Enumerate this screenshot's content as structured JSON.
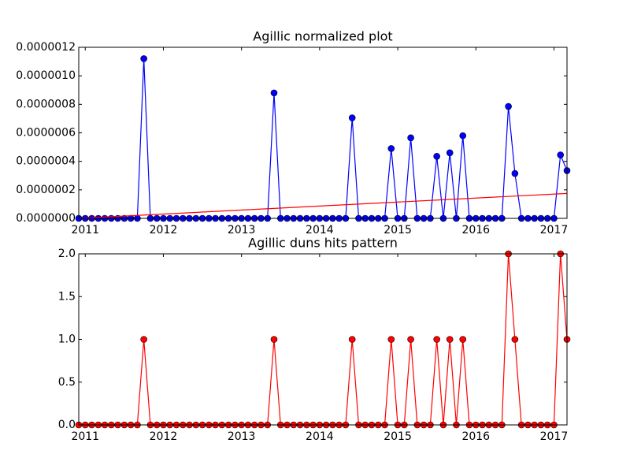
{
  "chart_data": [
    {
      "type": "line",
      "title": "Agillic normalized plot",
      "x": [
        2010.9167,
        2011,
        2011.0833,
        2011.1667,
        2011.25,
        2011.3333,
        2011.4167,
        2011.5,
        2011.5833,
        2011.6667,
        2011.75,
        2011.8333,
        2011.9167,
        2012,
        2012.0833,
        2012.1667,
        2012.25,
        2012.3333,
        2012.4167,
        2012.5,
        2012.5833,
        2012.6667,
        2012.75,
        2012.8333,
        2012.9167,
        2013,
        2013.0833,
        2013.1667,
        2013.25,
        2013.3333,
        2013.4167,
        2013.5,
        2013.5833,
        2013.6667,
        2013.75,
        2013.8333,
        2013.9167,
        2014,
        2014.0833,
        2014.1667,
        2014.25,
        2014.3333,
        2014.4167,
        2014.5,
        2014.5833,
        2014.6667,
        2014.75,
        2014.8333,
        2014.9167,
        2015,
        2015.0833,
        2015.1667,
        2015.25,
        2015.3333,
        2015.4167,
        2015.5,
        2015.5833,
        2015.6667,
        2015.75,
        2015.8333,
        2015.9167,
        2016,
        2016.0833,
        2016.1667,
        2016.25,
        2016.3333,
        2016.4167,
        2016.5,
        2016.5833,
        2016.6667,
        2016.75,
        2016.8333,
        2016.9167,
        2017,
        2017.0833,
        2017.1667
      ],
      "series": [
        {
          "color": "#0000ff",
          "marker": true,
          "values": [
            0,
            0,
            0,
            0,
            0,
            0,
            0,
            0,
            0,
            0,
            1.12e-06,
            0,
            0,
            0,
            0,
            0,
            0,
            0,
            0,
            0,
            0,
            0,
            0,
            0,
            0,
            0,
            0,
            0,
            0,
            0,
            8.8e-07,
            0,
            0,
            0,
            0,
            0,
            0,
            0,
            0,
            0,
            0,
            0,
            7.05e-07,
            0,
            0,
            0,
            0,
            0,
            4.9e-07,
            0,
            0,
            5.65e-07,
            0,
            0,
            0,
            4.35e-07,
            0,
            4.6e-07,
            0,
            5.8e-07,
            0,
            0,
            0,
            0,
            0,
            0,
            7.85e-07,
            3.15e-07,
            0,
            0,
            0,
            0,
            0,
            0,
            4.45e-07,
            3.35e-07
          ]
        },
        {
          "color": "#ff0000",
          "marker": false,
          "x": [
            2010.9167,
            2017.1667
          ],
          "values": [
            0,
            1.75e-07
          ]
        }
      ],
      "xlim": [
        2010.9167,
        2017.1667
      ],
      "xticks": [
        2011,
        2012,
        2013,
        2014,
        2015,
        2016,
        2017
      ],
      "ylim": [
        0,
        1.2e-06
      ],
      "yticks": [
        {
          "value": 0,
          "label": "0.0000000"
        },
        {
          "value": 2e-07,
          "label": "0.0000002"
        },
        {
          "value": 4e-07,
          "label": "0.0000004"
        },
        {
          "value": 6e-07,
          "label": "0.0000006"
        },
        {
          "value": 8e-07,
          "label": "0.0000008"
        },
        {
          "value": 1e-06,
          "label": "0.0000010"
        },
        {
          "value": 1.2e-06,
          "label": "0.0000012"
        }
      ]
    },
    {
      "type": "line",
      "title": "Agillic duns hits pattern",
      "x": [
        2010.9167,
        2011,
        2011.0833,
        2011.1667,
        2011.25,
        2011.3333,
        2011.4167,
        2011.5,
        2011.5833,
        2011.6667,
        2011.75,
        2011.8333,
        2011.9167,
        2012,
        2012.0833,
        2012.1667,
        2012.25,
        2012.3333,
        2012.4167,
        2012.5,
        2012.5833,
        2012.6667,
        2012.75,
        2012.8333,
        2012.9167,
        2013,
        2013.0833,
        2013.1667,
        2013.25,
        2013.3333,
        2013.4167,
        2013.5,
        2013.5833,
        2013.6667,
        2013.75,
        2013.8333,
        2013.9167,
        2014,
        2014.0833,
        2014.1667,
        2014.25,
        2014.3333,
        2014.4167,
        2014.5,
        2014.5833,
        2014.6667,
        2014.75,
        2014.8333,
        2014.9167,
        2015,
        2015.0833,
        2015.1667,
        2015.25,
        2015.3333,
        2015.4167,
        2015.5,
        2015.5833,
        2015.6667,
        2015.75,
        2015.8333,
        2015.9167,
        2016,
        2016.0833,
        2016.1667,
        2016.25,
        2016.3333,
        2016.4167,
        2016.5,
        2016.5833,
        2016.6667,
        2016.75,
        2016.8333,
        2016.9167,
        2017,
        2017.0833,
        2017.1667
      ],
      "series": [
        {
          "color": "#ff0000",
          "marker": true,
          "values": [
            0,
            0,
            0,
            0,
            0,
            0,
            0,
            0,
            0,
            0,
            1,
            0,
            0,
            0,
            0,
            0,
            0,
            0,
            0,
            0,
            0,
            0,
            0,
            0,
            0,
            0,
            0,
            0,
            0,
            0,
            1,
            0,
            0,
            0,
            0,
            0,
            0,
            0,
            0,
            0,
            0,
            0,
            1,
            0,
            0,
            0,
            0,
            0,
            1,
            0,
            0,
            1,
            0,
            0,
            0,
            1,
            0,
            1,
            0,
            1,
            0,
            0,
            0,
            0,
            0,
            0,
            2,
            1,
            0,
            0,
            0,
            0,
            0,
            0,
            2,
            1
          ]
        }
      ],
      "xlim": [
        2010.9167,
        2017.1667
      ],
      "xticks": [
        2011,
        2012,
        2013,
        2014,
        2015,
        2016,
        2017
      ],
      "ylim": [
        0,
        2
      ],
      "yticks": [
        {
          "value": 0,
          "label": "0.0"
        },
        0.5,
        {
          "value": 1,
          "label": "1.0"
        },
        1.5,
        {
          "value": 2,
          "label": "2.0"
        }
      ]
    }
  ]
}
